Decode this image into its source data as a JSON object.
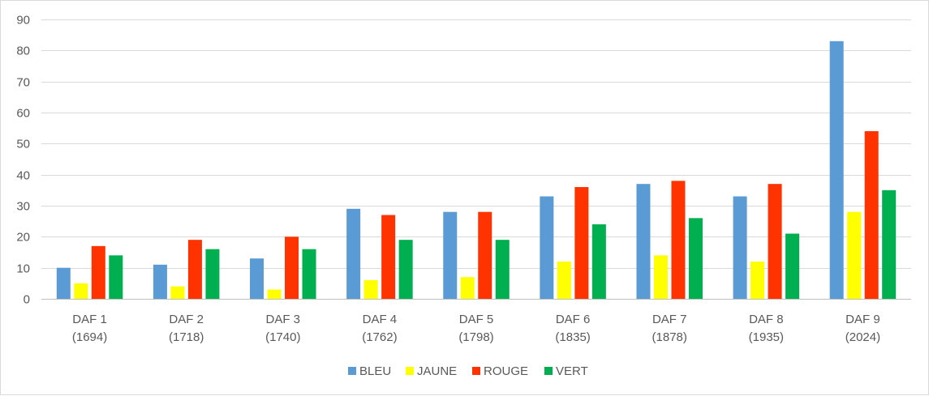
{
  "chart_data": {
    "type": "bar",
    "title": "",
    "xlabel": "",
    "ylabel": "",
    "ylim": [
      0,
      90
    ],
    "yticks": [
      0,
      10,
      20,
      30,
      40,
      50,
      60,
      70,
      80,
      90
    ],
    "grid": true,
    "legend_position": "bottom",
    "categories": [
      [
        "DAF 1",
        "(1694)"
      ],
      [
        "DAF 2",
        "(1718)"
      ],
      [
        "DAF 3",
        "(1740)"
      ],
      [
        "DAF 4",
        "(1762)"
      ],
      [
        "DAF 5",
        "(1798)"
      ],
      [
        "DAF 6",
        "(1835)"
      ],
      [
        "DAF 7",
        "(1878)"
      ],
      [
        "DAF 8",
        "(1935)"
      ],
      [
        "DAF 9",
        "(2024)"
      ]
    ],
    "series": [
      {
        "name": "BLEU",
        "color": "#5B9BD5",
        "values": [
          10,
          11,
          13,
          29,
          28,
          33,
          37,
          33,
          83
        ]
      },
      {
        "name": "JAUNE",
        "color": "#FFFF00",
        "values": [
          5,
          4,
          3,
          6,
          7,
          12,
          14,
          12,
          28
        ]
      },
      {
        "name": "ROUGE",
        "color": "#FF3300",
        "values": [
          17,
          19,
          20,
          27,
          28,
          36,
          38,
          37,
          54
        ]
      },
      {
        "name": "VERT",
        "color": "#00B050",
        "values": [
          14,
          16,
          16,
          19,
          19,
          24,
          26,
          21,
          35
        ]
      }
    ]
  }
}
